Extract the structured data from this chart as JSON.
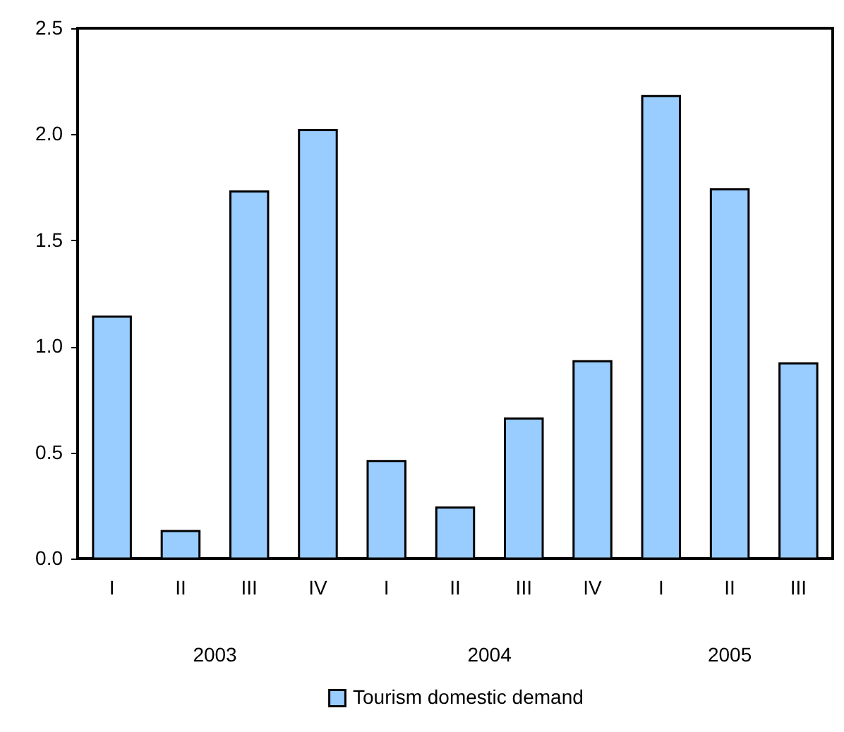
{
  "chart_data": {
    "type": "bar",
    "categories": [
      "I",
      "II",
      "III",
      "IV",
      "I",
      "II",
      "III",
      "IV",
      "I",
      "II",
      "III"
    ],
    "series": [
      {
        "name": "Tourism domestic demand",
        "color": "#99ccff",
        "values": [
          1.14,
          0.13,
          1.73,
          2.02,
          0.46,
          0.24,
          0.66,
          0.93,
          2.18,
          1.74,
          0.92
        ]
      }
    ],
    "annotations": [
      "2003",
      "2004",
      "2005"
    ],
    "ylim": [
      0,
      2.5
    ],
    "yticks": [
      {
        "value": 0,
        "label": "0.0"
      },
      0.5,
      {
        "value": 1,
        "label": "1.0"
      },
      1.5,
      {
        "value": 2,
        "label": "2.0"
      },
      2.5
    ],
    "grid": false,
    "legend": "bottom"
  }
}
